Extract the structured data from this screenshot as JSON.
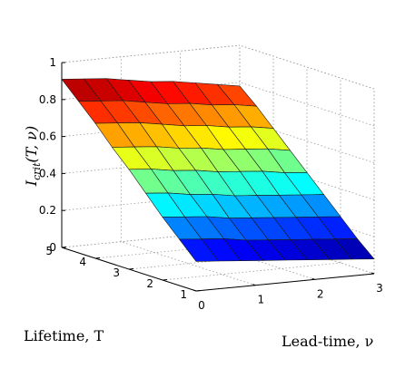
{
  "chart_data": {
    "type": "surface",
    "title": "",
    "xlabel": "Lead-time, ν",
    "ylabel": "Lifetime, T",
    "zlabel": "I_crit(T, ν)",
    "zlabel_parts": {
      "base": "I",
      "sub": "crit",
      "args": "(T, ν)"
    },
    "xlim": [
      0,
      3
    ],
    "ylim": [
      1,
      5
    ],
    "zlim": [
      0,
      1
    ],
    "xticks": [
      "0",
      "1",
      "2",
      "3"
    ],
    "yticks": [
      "1",
      "2",
      "3",
      "4",
      "5"
    ],
    "zticks": [
      "0",
      "0.2",
      "0.4",
      "0.6",
      "0.8",
      "1"
    ],
    "grid": true,
    "colormap": "jet",
    "x": [
      0,
      0.375,
      0.75,
      1.125,
      1.5,
      1.875,
      2.25,
      2.625,
      3
    ],
    "y": [
      1,
      1.5,
      2,
      2.5,
      3,
      3.5,
      4,
      4.5,
      5
    ],
    "z_rows_by_T": [
      [
        0.16,
        0.15,
        0.14,
        0.13,
        0.12,
        0.11,
        0.1,
        0.09,
        0.08
      ],
      [
        0.25,
        0.24,
        0.23,
        0.21,
        0.2,
        0.19,
        0.18,
        0.17,
        0.16
      ],
      [
        0.34,
        0.33,
        0.32,
        0.3,
        0.29,
        0.28,
        0.27,
        0.26,
        0.25
      ],
      [
        0.44,
        0.43,
        0.41,
        0.4,
        0.38,
        0.37,
        0.36,
        0.35,
        0.34
      ],
      [
        0.54,
        0.53,
        0.51,
        0.5,
        0.48,
        0.47,
        0.46,
        0.44,
        0.43
      ],
      [
        0.63,
        0.62,
        0.61,
        0.59,
        0.58,
        0.56,
        0.55,
        0.54,
        0.52
      ],
      [
        0.73,
        0.72,
        0.71,
        0.69,
        0.67,
        0.66,
        0.64,
        0.63,
        0.61
      ],
      [
        0.82,
        0.81,
        0.8,
        0.78,
        0.76,
        0.75,
        0.73,
        0.72,
        0.7
      ],
      [
        0.91,
        0.9,
        0.89,
        0.87,
        0.85,
        0.84,
        0.82,
        0.8,
        0.78
      ]
    ]
  }
}
